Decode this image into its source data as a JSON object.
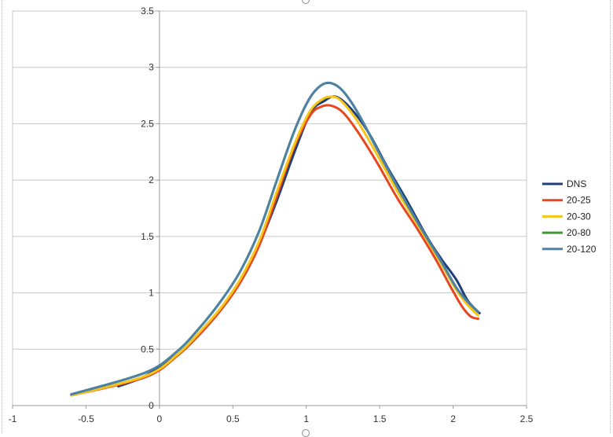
{
  "chart_data": {
    "type": "line",
    "xlim": [
      -1,
      2.5
    ],
    "ylim": [
      0,
      3.5
    ],
    "x_ticks": [
      -1,
      -0.5,
      0,
      0.5,
      1,
      1.5,
      2,
      2.5
    ],
    "x_tick_labels": [
      "-1",
      "-0.5",
      "0",
      "0.5",
      "1",
      "1.5",
      "2",
      "2.5"
    ],
    "y_ticks": [
      0,
      0.5,
      1,
      1.5,
      2,
      2.5,
      3,
      3.5
    ],
    "y_tick_labels": [
      "0",
      "0.5",
      "1",
      "1.5",
      "2",
      "2.5",
      "3",
      "3.5"
    ],
    "grid": "horizontal",
    "legend_position": "right",
    "series": [
      {
        "name": "DNS",
        "color": "#1f3f7a",
        "points": [
          [
            -0.28,
            0.17
          ],
          [
            -0.1,
            0.26
          ],
          [
            0.12,
            0.45
          ],
          [
            0.28,
            0.65
          ],
          [
            0.42,
            0.86
          ],
          [
            0.55,
            1.1
          ],
          [
            0.68,
            1.43
          ],
          [
            0.8,
            1.82
          ],
          [
            0.92,
            2.25
          ],
          [
            1.03,
            2.6
          ],
          [
            1.12,
            2.7
          ],
          [
            1.2,
            2.74
          ],
          [
            1.3,
            2.64
          ],
          [
            1.42,
            2.43
          ],
          [
            1.55,
            2.12
          ],
          [
            1.68,
            1.83
          ],
          [
            1.82,
            1.5
          ],
          [
            1.92,
            1.3
          ],
          [
            2.02,
            1.12
          ],
          [
            2.1,
            0.93
          ],
          [
            2.18,
            0.82
          ]
        ]
      },
      {
        "name": "20-25",
        "color": "#e8461e",
        "points": [
          [
            -0.6,
            0.09
          ],
          [
            -0.1,
            0.25
          ],
          [
            0.12,
            0.44
          ],
          [
            0.28,
            0.64
          ],
          [
            0.42,
            0.85
          ],
          [
            0.55,
            1.09
          ],
          [
            0.68,
            1.42
          ],
          [
            0.8,
            1.86
          ],
          [
            0.92,
            2.3
          ],
          [
            1.03,
            2.58
          ],
          [
            1.1,
            2.65
          ],
          [
            1.17,
            2.66
          ],
          [
            1.25,
            2.6
          ],
          [
            1.35,
            2.43
          ],
          [
            1.48,
            2.16
          ],
          [
            1.62,
            1.84
          ],
          [
            1.75,
            1.58
          ],
          [
            1.88,
            1.3
          ],
          [
            1.98,
            1.06
          ],
          [
            2.06,
            0.88
          ],
          [
            2.12,
            0.79
          ],
          [
            2.17,
            0.77
          ]
        ]
      },
      {
        "name": "20-30",
        "color": "#f5c518",
        "points": [
          [
            -0.6,
            0.09
          ],
          [
            -0.1,
            0.26
          ],
          [
            0.12,
            0.45
          ],
          [
            0.28,
            0.66
          ],
          [
            0.42,
            0.87
          ],
          [
            0.55,
            1.12
          ],
          [
            0.68,
            1.46
          ],
          [
            0.8,
            1.9
          ],
          [
            0.92,
            2.32
          ],
          [
            1.02,
            2.6
          ],
          [
            1.1,
            2.71
          ],
          [
            1.17,
            2.74
          ],
          [
            1.24,
            2.7
          ],
          [
            1.35,
            2.52
          ],
          [
            1.48,
            2.23
          ],
          [
            1.62,
            1.9
          ],
          [
            1.76,
            1.6
          ],
          [
            1.9,
            1.3
          ],
          [
            2.02,
            1.03
          ],
          [
            2.1,
            0.89
          ],
          [
            2.17,
            0.8
          ]
        ]
      },
      {
        "name": "20-80",
        "color": "#3a9a2a",
        "points": [
          [
            -0.6,
            0.1
          ],
          [
            -0.1,
            0.29
          ],
          [
            0.12,
            0.48
          ],
          [
            0.28,
            0.7
          ],
          [
            0.42,
            0.93
          ],
          [
            0.55,
            1.19
          ],
          [
            0.68,
            1.55
          ],
          [
            0.8,
            2.0
          ],
          [
            0.92,
            2.44
          ],
          [
            1.02,
            2.72
          ],
          [
            1.1,
            2.84
          ],
          [
            1.17,
            2.86
          ],
          [
            1.25,
            2.79
          ],
          [
            1.35,
            2.6
          ],
          [
            1.48,
            2.28
          ],
          [
            1.62,
            1.94
          ],
          [
            1.76,
            1.62
          ],
          [
            1.9,
            1.32
          ],
          [
            2.02,
            1.05
          ],
          [
            2.1,
            0.92
          ],
          [
            2.17,
            0.83
          ]
        ]
      },
      {
        "name": "20-120",
        "color": "#4e81a6",
        "points": [
          [
            -0.6,
            0.1
          ],
          [
            -0.1,
            0.29
          ],
          [
            0.12,
            0.48
          ],
          [
            0.28,
            0.7
          ],
          [
            0.42,
            0.93
          ],
          [
            0.55,
            1.19
          ],
          [
            0.68,
            1.55
          ],
          [
            0.8,
            2.0
          ],
          [
            0.92,
            2.44
          ],
          [
            1.02,
            2.72
          ],
          [
            1.1,
            2.84
          ],
          [
            1.17,
            2.86
          ],
          [
            1.25,
            2.79
          ],
          [
            1.35,
            2.6
          ],
          [
            1.48,
            2.28
          ],
          [
            1.62,
            1.94
          ],
          [
            1.76,
            1.62
          ],
          [
            1.9,
            1.32
          ],
          [
            2.02,
            1.05
          ],
          [
            2.1,
            0.92
          ],
          [
            2.17,
            0.83
          ]
        ]
      }
    ]
  }
}
